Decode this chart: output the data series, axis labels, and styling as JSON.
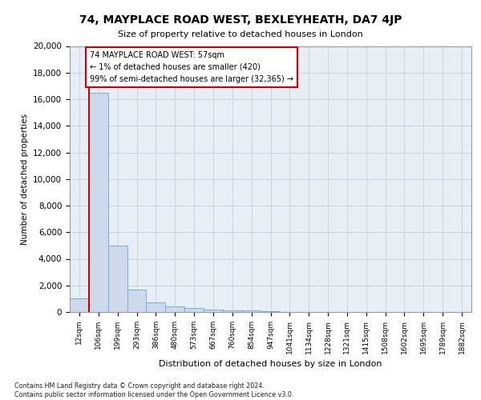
{
  "title1": "74, MAYPLACE ROAD WEST, BEXLEYHEATH, DA7 4JP",
  "title2": "Size of property relative to detached houses in London",
  "xlabel": "Distribution of detached houses by size in London",
  "ylabel": "Number of detached properties",
  "footnote": "Contains HM Land Registry data © Crown copyright and database right 2024.\nContains public sector information licensed under the Open Government Licence v3.0.",
  "bar_labels": [
    "12sqm",
    "106sqm",
    "199sqm",
    "293sqm",
    "386sqm",
    "480sqm",
    "573sqm",
    "667sqm",
    "760sqm",
    "854sqm",
    "947sqm",
    "1041sqm",
    "1134sqm",
    "1228sqm",
    "1321sqm",
    "1415sqm",
    "1508sqm",
    "1602sqm",
    "1695sqm",
    "1789sqm",
    "1882sqm"
  ],
  "bar_values": [
    1000,
    16500,
    5000,
    1700,
    700,
    400,
    300,
    200,
    150,
    100,
    50,
    0,
    0,
    0,
    0,
    0,
    0,
    0,
    0,
    0,
    0
  ],
  "bar_color": "#cddaeb",
  "bar_edge_color": "#7aadd4",
  "annotation_line1": "74 MAYPLACE ROAD WEST: 57sqm",
  "annotation_line2": "← 1% of detached houses are smaller (420)",
  "annotation_line3": "99% of semi-detached houses are larger (32,365) →",
  "red_line_color": "#cc0000",
  "ylim": [
    0,
    20000
  ],
  "yticks": [
    0,
    2000,
    4000,
    6000,
    8000,
    10000,
    12000,
    14000,
    16000,
    18000,
    20000
  ],
  "grid_color": "#c0cfe0",
  "background_color": "#e8eef5"
}
